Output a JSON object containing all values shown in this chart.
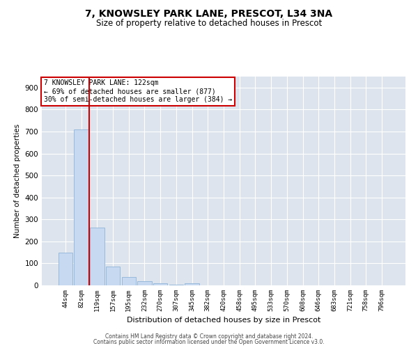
{
  "title": "7, KNOWSLEY PARK LANE, PRESCOT, L34 3NA",
  "subtitle": "Size of property relative to detached houses in Prescot",
  "xlabel": "Distribution of detached houses by size in Prescot",
  "ylabel": "Number of detached properties",
  "categories": [
    "44sqm",
    "82sqm",
    "119sqm",
    "157sqm",
    "195sqm",
    "232sqm",
    "270sqm",
    "307sqm",
    "345sqm",
    "382sqm",
    "420sqm",
    "458sqm",
    "495sqm",
    "533sqm",
    "570sqm",
    "608sqm",
    "646sqm",
    "683sqm",
    "721sqm",
    "758sqm",
    "796sqm"
  ],
  "values": [
    148,
    710,
    263,
    84,
    38,
    20,
    8,
    4,
    10,
    0,
    0,
    0,
    0,
    0,
    0,
    0,
    0,
    0,
    0,
    0,
    0
  ],
  "bar_color": "#c6d9f0",
  "bar_edge_color": "#8fb4d8",
  "vline_x": 1.5,
  "vline_color": "#cc0000",
  "annotation_text": "7 KNOWSLEY PARK LANE: 122sqm\n← 69% of detached houses are smaller (877)\n30% of semi-detached houses are larger (384) →",
  "annotation_box_facecolor": "#ffffff",
  "annotation_box_edgecolor": "#cc0000",
  "ylim": [
    0,
    950
  ],
  "yticks": [
    0,
    100,
    200,
    300,
    400,
    500,
    600,
    700,
    800,
    900
  ],
  "background_color": "#dde4ed",
  "grid_color": "#ffffff",
  "title_fontsize": 10,
  "subtitle_fontsize": 8.5,
  "ylabel_fontsize": 7.5,
  "xlabel_fontsize": 8,
  "tick_fontsize": 7.5,
  "xtick_fontsize": 6.5,
  "footer1": "Contains HM Land Registry data © Crown copyright and database right 2024.",
  "footer2": "Contains public sector information licensed under the Open Government Licence v3.0."
}
